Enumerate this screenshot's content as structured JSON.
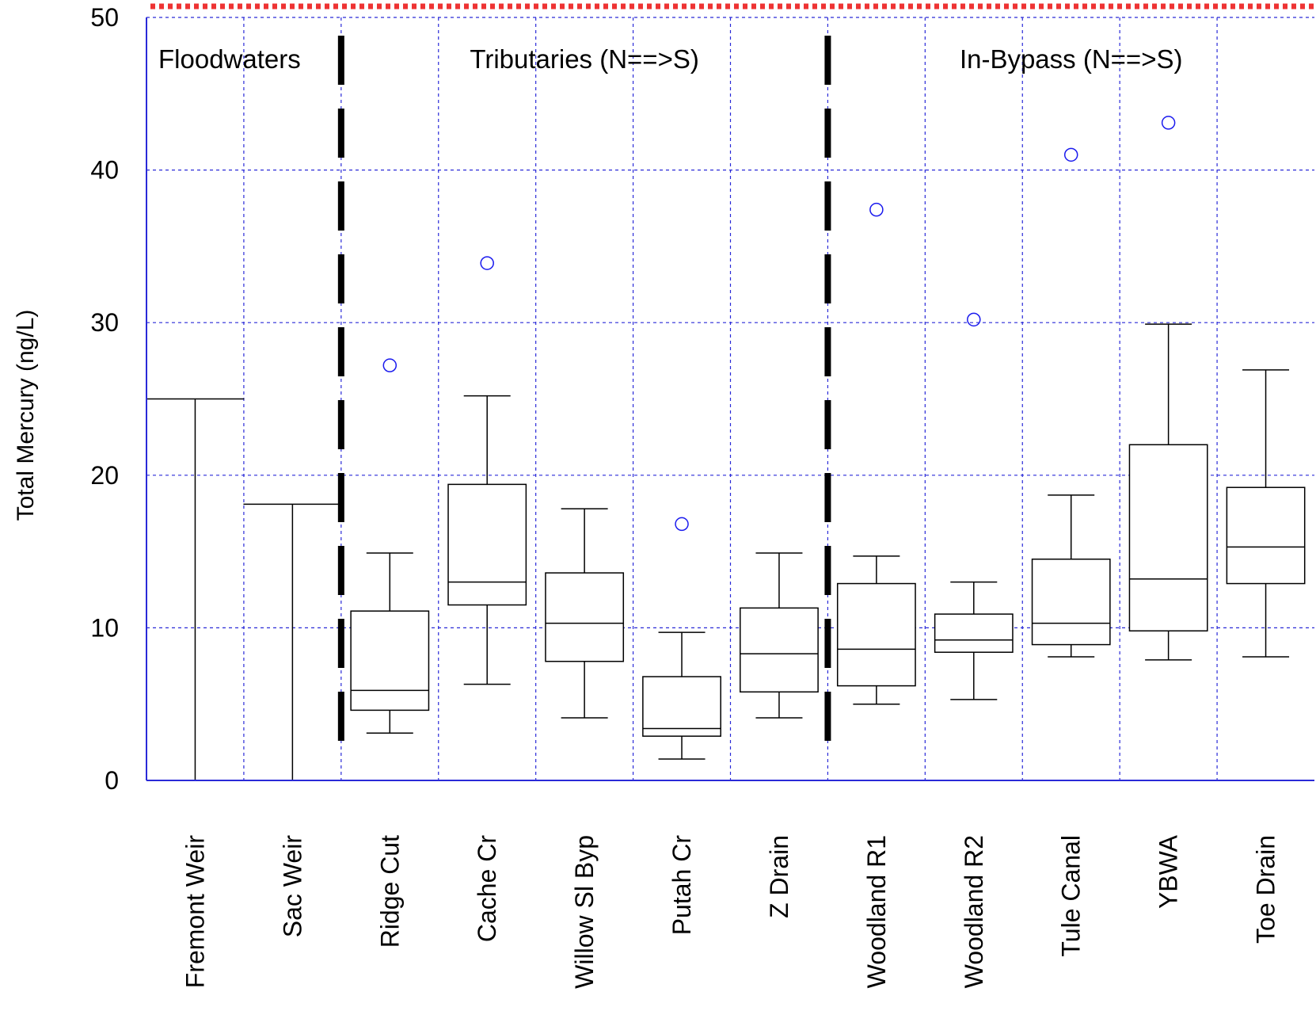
{
  "chart_data": {
    "type": "box",
    "ylabel": "Total Mercury (ng/L)",
    "ylim": [
      0,
      50
    ],
    "yticks": [
      0,
      10,
      20,
      30,
      40,
      50
    ],
    "grid": true,
    "colors": {
      "grid": "#2a2ad8",
      "axis": "#2a2ad8",
      "outlier": "#1a1aee",
      "threshold": "#ee3333",
      "box": "#000000",
      "divider": "#000000"
    },
    "threshold_line": {
      "y": 50,
      "style": "dotted",
      "color": "#ee3333"
    },
    "group_labels": [
      {
        "text": "Floodwaters",
        "between": [
          0,
          0
        ]
      },
      {
        "text": "Tributaries (N==>S)",
        "between": [
          2,
          6
        ]
      },
      {
        "text": "In-Bypass (N==>S)",
        "between": [
          7,
          11
        ]
      }
    ],
    "group_dividers_after_index": [
      1,
      6
    ],
    "categories": [
      "Fremont  Weir",
      "Sac Weir",
      "Ridge Cut",
      "Cache Cr",
      "Willow Sl Byp",
      "Putah Cr",
      "Z Drain",
      "Woodland R1",
      "Woodland R2",
      "Tule Canal",
      "YBWA",
      "Toe Drain"
    ],
    "boxes": [
      {
        "whisker_low": 0,
        "q1": null,
        "median": null,
        "q3": null,
        "whisker_high": 25,
        "outliers": []
      },
      {
        "whisker_low": 0,
        "q1": null,
        "median": null,
        "q3": null,
        "whisker_high": 18.1,
        "outliers": []
      },
      {
        "whisker_low": 3.1,
        "q1": 4.6,
        "median": 5.9,
        "q3": 11.1,
        "whisker_high": 14.9,
        "outliers": [
          27.2
        ]
      },
      {
        "whisker_low": 6.3,
        "q1": 11.5,
        "median": 13.0,
        "q3": 19.4,
        "whisker_high": 25.2,
        "outliers": [
          33.9
        ]
      },
      {
        "whisker_low": 4.1,
        "q1": 7.8,
        "median": 10.3,
        "q3": 13.6,
        "whisker_high": 17.8,
        "outliers": []
      },
      {
        "whisker_low": 1.4,
        "q1": 2.9,
        "median": 3.4,
        "q3": 6.8,
        "whisker_high": 9.7,
        "outliers": [
          16.8
        ]
      },
      {
        "whisker_low": 4.1,
        "q1": 5.8,
        "median": 8.3,
        "q3": 11.3,
        "whisker_high": 14.9,
        "outliers": []
      },
      {
        "whisker_low": 5.0,
        "q1": 6.2,
        "median": 8.6,
        "q3": 12.9,
        "whisker_high": 14.7,
        "outliers": [
          37.4
        ]
      },
      {
        "whisker_low": 5.3,
        "q1": 8.4,
        "median": 9.2,
        "q3": 10.9,
        "whisker_high": 13.0,
        "outliers": [
          30.2
        ]
      },
      {
        "whisker_low": 8.1,
        "q1": 8.9,
        "median": 10.3,
        "q3": 14.5,
        "whisker_high": 18.7,
        "outliers": [
          41.0
        ]
      },
      {
        "whisker_low": 7.9,
        "q1": 9.8,
        "median": 13.2,
        "q3": 22.0,
        "whisker_high": 29.9,
        "outliers": [
          43.1
        ]
      },
      {
        "whisker_low": 8.1,
        "q1": 12.9,
        "median": 15.3,
        "q3": 19.2,
        "whisker_high": 26.9,
        "outliers": []
      }
    ]
  }
}
